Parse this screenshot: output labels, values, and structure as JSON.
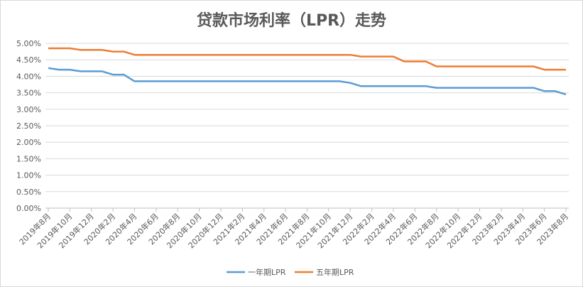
{
  "chart_data": {
    "type": "line",
    "title": "贷款市场利率（LPR）走势",
    "xlabel": "",
    "ylabel": "",
    "ylim": [
      0,
      5
    ],
    "y_ticks": [
      "0.00%",
      "0.50%",
      "1.00%",
      "1.50%",
      "2.00%",
      "2.50%",
      "3.00%",
      "3.50%",
      "4.00%",
      "4.50%",
      "5.00%"
    ],
    "grid": true,
    "legend_position": "bottom",
    "x_tick_labels": [
      "2019年8月",
      "2019年10月",
      "2019年12月",
      "2020年2月",
      "2020年4月",
      "2020年6月",
      "2020年8月",
      "2020年10月",
      "2020年12月",
      "2021年2月",
      "2021年4月",
      "2021年6月",
      "2021年8月",
      "2021年10月",
      "2021年12月",
      "2022年2月",
      "2022年4月",
      "2022年6月",
      "2022年8月",
      "2022年10月",
      "2022年12月",
      "2023年2月",
      "2023年4月",
      "2023年6月",
      "2023年8月"
    ],
    "x": [
      "2019-08",
      "2019-09",
      "2019-10",
      "2019-11",
      "2019-12",
      "2020-01",
      "2020-02",
      "2020-03",
      "2020-04",
      "2020-05",
      "2020-06",
      "2020-07",
      "2020-08",
      "2020-09",
      "2020-10",
      "2020-11",
      "2020-12",
      "2021-01",
      "2021-02",
      "2021-03",
      "2021-04",
      "2021-05",
      "2021-06",
      "2021-07",
      "2021-08",
      "2021-09",
      "2021-10",
      "2021-11",
      "2021-12",
      "2022-01",
      "2022-02",
      "2022-03",
      "2022-04",
      "2022-05",
      "2022-06",
      "2022-07",
      "2022-08",
      "2022-09",
      "2022-10",
      "2022-11",
      "2022-12",
      "2023-01",
      "2023-02",
      "2023-03",
      "2023-04",
      "2023-05",
      "2023-06",
      "2023-07",
      "2023-08"
    ],
    "series": [
      {
        "name": "一年期LPR",
        "color": "#5b9bd5",
        "values": [
          4.25,
          4.2,
          4.2,
          4.15,
          4.15,
          4.15,
          4.05,
          4.05,
          3.85,
          3.85,
          3.85,
          3.85,
          3.85,
          3.85,
          3.85,
          3.85,
          3.85,
          3.85,
          3.85,
          3.85,
          3.85,
          3.85,
          3.85,
          3.85,
          3.85,
          3.85,
          3.85,
          3.85,
          3.8,
          3.7,
          3.7,
          3.7,
          3.7,
          3.7,
          3.7,
          3.7,
          3.65,
          3.65,
          3.65,
          3.65,
          3.65,
          3.65,
          3.65,
          3.65,
          3.65,
          3.65,
          3.55,
          3.55,
          3.45
        ]
      },
      {
        "name": "五年期LPR",
        "color": "#ed7d31",
        "values": [
          4.85,
          4.85,
          4.85,
          4.8,
          4.8,
          4.8,
          4.75,
          4.75,
          4.65,
          4.65,
          4.65,
          4.65,
          4.65,
          4.65,
          4.65,
          4.65,
          4.65,
          4.65,
          4.65,
          4.65,
          4.65,
          4.65,
          4.65,
          4.65,
          4.65,
          4.65,
          4.65,
          4.65,
          4.65,
          4.6,
          4.6,
          4.6,
          4.6,
          4.45,
          4.45,
          4.45,
          4.3,
          4.3,
          4.3,
          4.3,
          4.3,
          4.3,
          4.3,
          4.3,
          4.3,
          4.3,
          4.2,
          4.2,
          4.2
        ]
      }
    ]
  }
}
